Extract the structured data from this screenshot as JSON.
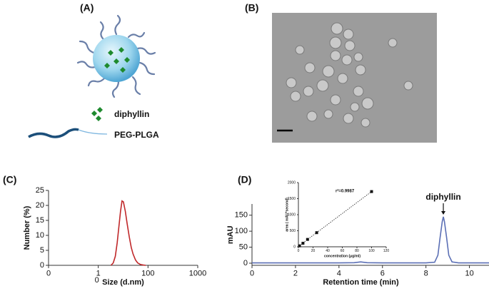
{
  "panel_labels": [
    "(A)",
    "(B)",
    "(C)",
    "(D)"
  ],
  "panel_a": {
    "labels": [
      "diphyllin",
      "PEG-PLGA"
    ]
  },
  "chart_data": [
    {
      "type": "line",
      "x_scale": "log",
      "x_label": "Size (d.nm)",
      "y_label": "Number (%)",
      "xlim": [
        1,
        1000
      ],
      "ylim": [
        0,
        25
      ],
      "xticks": [
        {
          "value": 1,
          "label": "0"
        },
        {
          "value": 10,
          "label": "1"
        },
        100,
        1000
      ],
      "x_extra_label": "0",
      "yticks": [
        0,
        5,
        10,
        15,
        20,
        25
      ],
      "color": "#c0282a",
      "x": [
        18,
        20,
        22,
        24,
        26,
        28,
        30,
        32,
        35,
        38,
        42,
        46,
        50,
        56,
        62,
        70,
        80,
        90
      ],
      "values": [
        0,
        0.8,
        3,
        7.5,
        13,
        18,
        21.5,
        21.2,
        18,
        14,
        9.5,
        6,
        3.8,
        1.8,
        0.8,
        0.3,
        0.1,
        0
      ]
    },
    {
      "type": "line",
      "x_label": "Retention time (min)",
      "y_label": "mAU",
      "annotation": "diphyllin",
      "xlim": [
        0,
        10.9
      ],
      "ylim": [
        -8,
        185
      ],
      "xticks": [
        0,
        2,
        4,
        6,
        8,
        10
      ],
      "yticks": [
        0,
        50,
        100,
        150
      ],
      "color": "#5b6fb5",
      "x": [
        0,
        1,
        2,
        3,
        4,
        4.7,
        5,
        5.3,
        6,
        7,
        8,
        8.4,
        8.55,
        8.65,
        8.75,
        8.8,
        8.85,
        8.95,
        9.05,
        9.2,
        9.5,
        10,
        10.9
      ],
      "values": [
        1,
        1,
        1,
        1,
        1,
        1.5,
        4,
        1.5,
        1,
        1,
        1,
        3,
        25,
        80,
        130,
        145,
        130,
        80,
        25,
        4,
        1,
        1,
        1
      ]
    },
    {
      "type": "scatter",
      "x_label": "concentration (μg/ml)",
      "y_label": "area ( mAU*second)",
      "annotation": "r²=0.9987",
      "xlim": [
        0,
        120
      ],
      "ylim": [
        0,
        2000
      ],
      "xticks": [
        0,
        20,
        40,
        60,
        80,
        100,
        120
      ],
      "yticks": [
        0,
        500,
        1000,
        1500,
        2000
      ],
      "color": "#111111",
      "x": [
        1.5,
        6.25,
        12.5,
        25,
        100
      ],
      "values": [
        30,
        110,
        230,
        440,
        1720
      ]
    }
  ]
}
